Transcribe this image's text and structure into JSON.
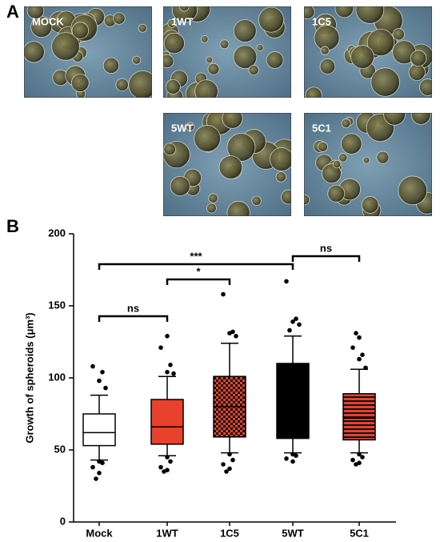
{
  "panels": [
    "A",
    "B"
  ],
  "images": [
    {
      "label": "MOCK"
    },
    {
      "label": "1WT"
    },
    {
      "label": "1C5"
    },
    {
      "label": "5WT"
    },
    {
      "label": "5C1"
    }
  ],
  "chart_data": {
    "type": "box",
    "y_label": "Growth of spheroids (μm³)",
    "categories": [
      "Mock",
      "1WT",
      "1C5",
      "5WT",
      "5C1"
    ],
    "ylim": [
      0,
      200
    ],
    "yticks": [
      0,
      50,
      100,
      150,
      200
    ],
    "boxes": [
      {
        "low": 43,
        "q1": 53,
        "median": 62,
        "q3": 75,
        "high": 88,
        "outliers": [
          42,
          41,
          38,
          34,
          30,
          93,
          98,
          104,
          108
        ],
        "color": "#ffffff",
        "pattern": "solid"
      },
      {
        "low": 46,
        "q1": 54,
        "median": 66,
        "q3": 85,
        "high": 101,
        "outliers": [
          45,
          42,
          38,
          36,
          35,
          103,
          104,
          109,
          121,
          129
        ],
        "color": "#e8412c",
        "pattern": "solid"
      },
      {
        "low": 48,
        "q1": 59,
        "median": 80,
        "q3": 101,
        "high": 124,
        "outliers": [
          47,
          43,
          40,
          37,
          35,
          129,
          131,
          132,
          158
        ],
        "color": "#e8412c",
        "pattern": "checker"
      },
      {
        "low": 48,
        "q1": 58,
        "median": 80,
        "q3": 110,
        "high": 129,
        "outliers": [
          47,
          46,
          44,
          42,
          133,
          137,
          139,
          141,
          167
        ],
        "color": "#000000",
        "pattern": "solid"
      },
      {
        "low": 48,
        "q1": 57,
        "median": 72,
        "q3": 89,
        "high": 106,
        "outliers": [
          47,
          45,
          43,
          41,
          40,
          107,
          113,
          116,
          121,
          128,
          131
        ],
        "color": "#e8412c",
        "pattern": "stripes"
      }
    ],
    "annotations": [
      "ns",
      "*",
      "***",
      "ns"
    ]
  }
}
